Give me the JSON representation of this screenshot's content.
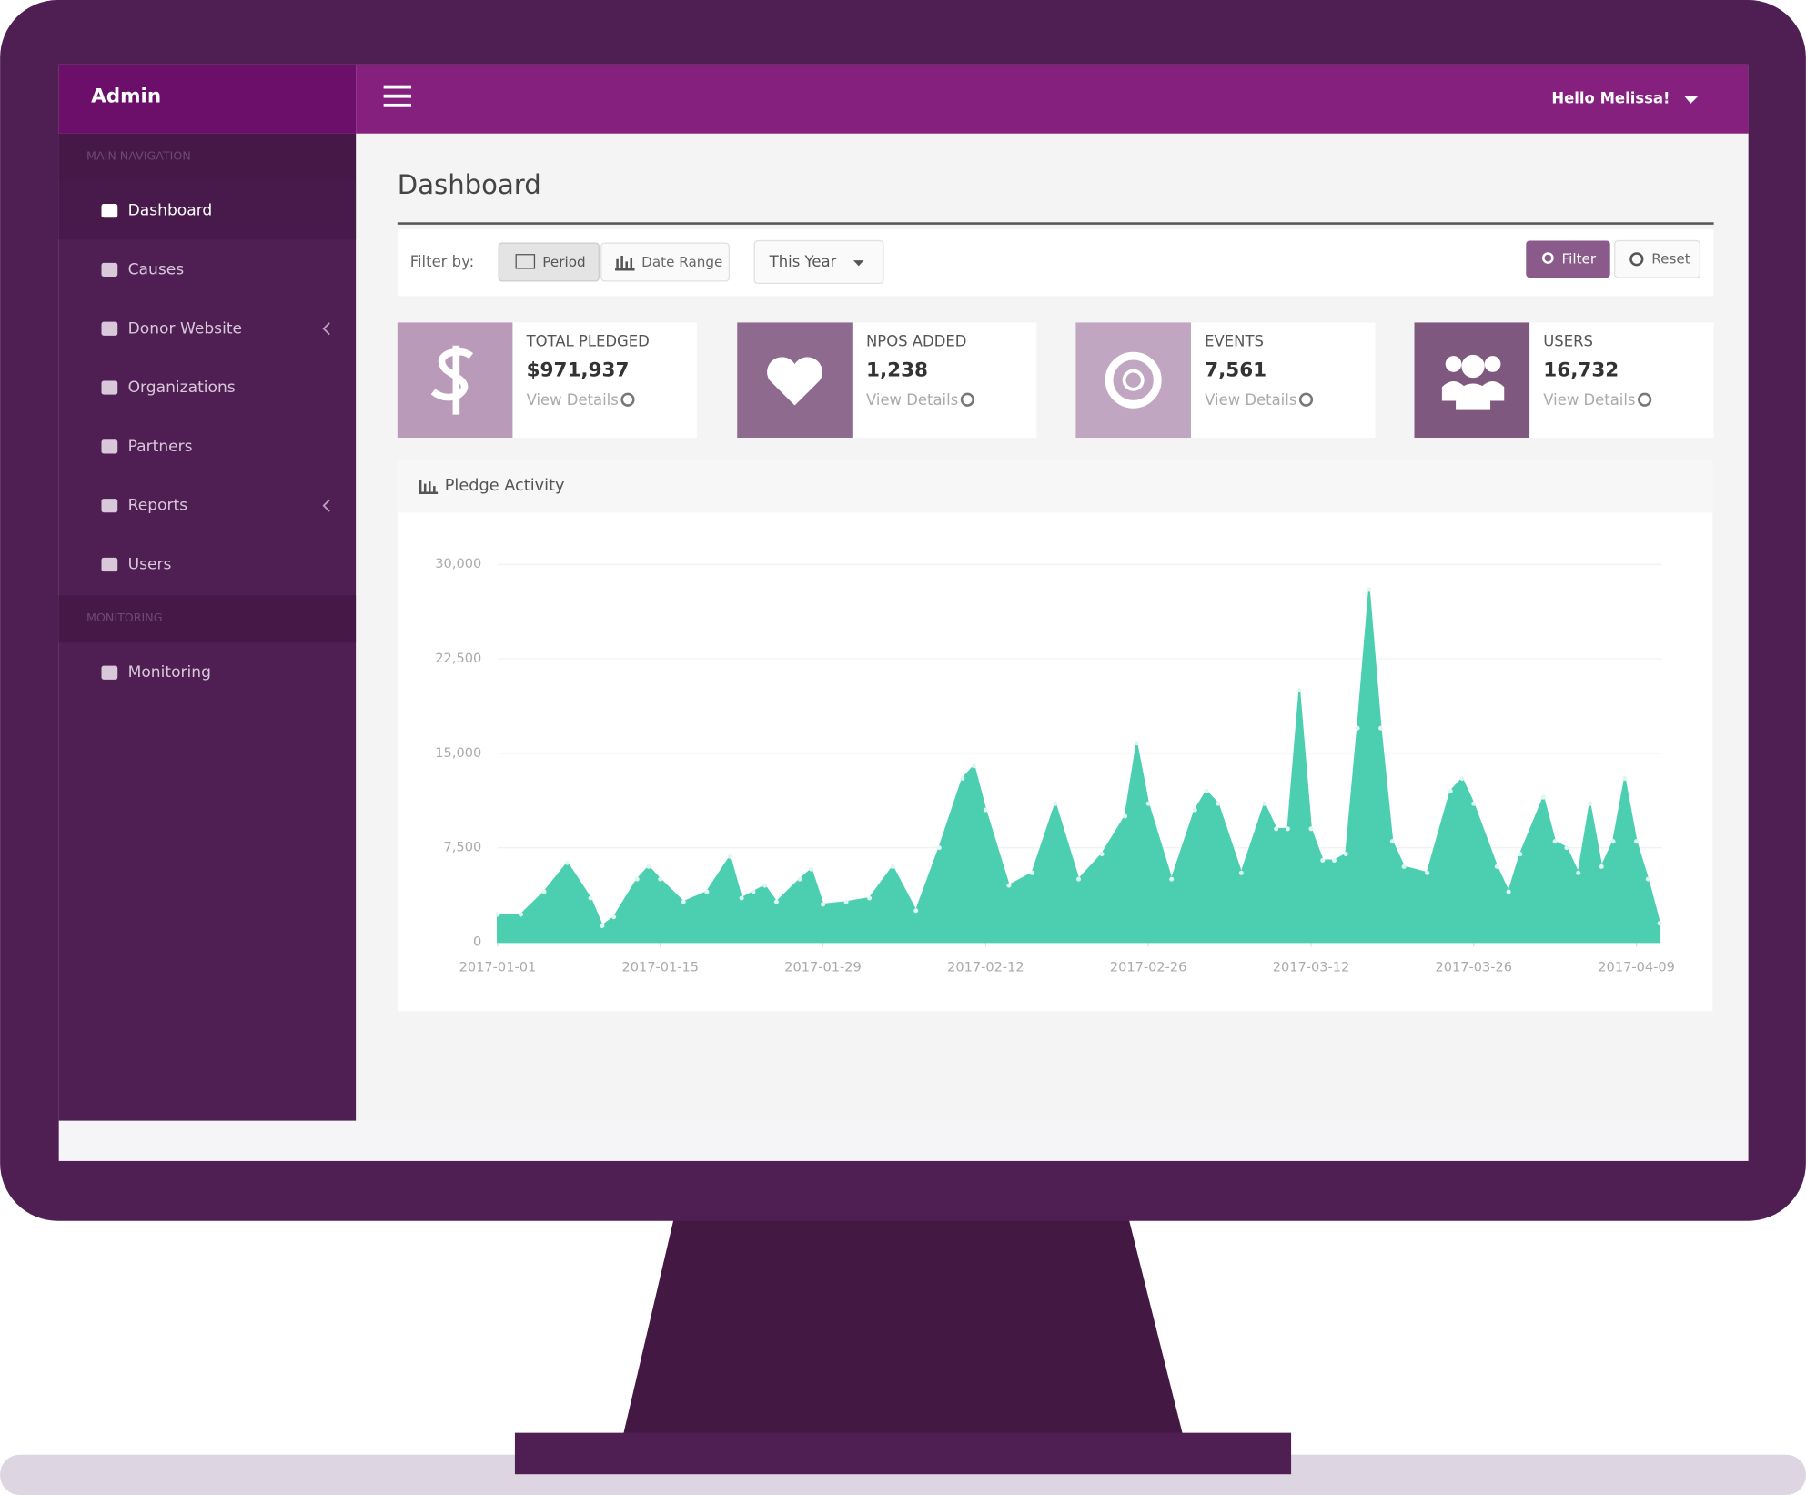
{
  "header": {
    "brand": "Admin",
    "greeting": "Hello Melissa!"
  },
  "sidebar": {
    "sections": [
      {
        "title": "MAIN NAVIGATION",
        "items": [
          "Dashboard",
          "Causes",
          "Donor Website",
          "Organizations",
          "Partners",
          "Reports",
          "Users"
        ]
      },
      {
        "title": "MONITORING",
        "items": [
          "Monitoring"
        ]
      }
    ]
  },
  "page_title": "Dashboard",
  "filter": {
    "label": "Filter by:",
    "tabs": [
      "Period",
      "Date Range"
    ],
    "select": "This Year",
    "buttons": [
      "Filter",
      "Reset"
    ]
  },
  "stats": [
    {
      "label": "TOTAL PLEDGED",
      "value": "$971,937",
      "link": "View Details"
    },
    {
      "label": "NPOS ADDED",
      "value": "1,238",
      "link": "View Details"
    },
    {
      "label": "EVENTS",
      "value": "7,561",
      "link": "View Details"
    },
    {
      "label": "USERS",
      "value": "16,732",
      "link": "View Details"
    }
  ],
  "chart_data": {
    "type": "area",
    "title": "Pledge Activity",
    "color": "#4ccfb0",
    "x": [
      "2017-01-01",
      "2017-01-03",
      "2017-01-05",
      "2017-01-07",
      "2017-01-09",
      "2017-01-10",
      "2017-01-11",
      "2017-01-13",
      "2017-01-14",
      "2017-01-15",
      "2017-01-17",
      "2017-01-19",
      "2017-01-21",
      "2017-01-22",
      "2017-01-23",
      "2017-01-24",
      "2017-01-25",
      "2017-01-27",
      "2017-01-28",
      "2017-01-29",
      "2017-01-31",
      "2017-02-02",
      "2017-02-04",
      "2017-02-06",
      "2017-02-08",
      "2017-02-10",
      "2017-02-11",
      "2017-02-12",
      "2017-02-14",
      "2017-02-16",
      "2017-02-18",
      "2017-02-20",
      "2017-02-22",
      "2017-02-24",
      "2017-02-25",
      "2017-02-26",
      "2017-02-28",
      "2017-03-02",
      "2017-03-03",
      "2017-03-04",
      "2017-03-06",
      "2017-03-08",
      "2017-03-09",
      "2017-03-10",
      "2017-03-11",
      "2017-03-12",
      "2017-03-13",
      "2017-03-14",
      "2017-03-15",
      "2017-03-16",
      "2017-03-17",
      "2017-03-18",
      "2017-03-19",
      "2017-03-20",
      "2017-03-22",
      "2017-03-24",
      "2017-03-25",
      "2017-03-26",
      "2017-03-28",
      "2017-03-29",
      "2017-03-30",
      "2017-04-01",
      "2017-04-02",
      "2017-04-03",
      "2017-04-04",
      "2017-04-05",
      "2017-04-06",
      "2017-04-07",
      "2017-04-08",
      "2017-04-09",
      "2017-04-10",
      "2017-04-11"
    ],
    "values": [
      2200,
      2200,
      4000,
      6300,
      3500,
      1300,
      2000,
      5000,
      6000,
      5000,
      3200,
      4000,
      6800,
      3500,
      4000,
      4500,
      3200,
      5000,
      5800,
      3000,
      3200,
      3500,
      6000,
      2500,
      7500,
      13000,
      14000,
      10500,
      4500,
      5500,
      11000,
      5000,
      7000,
      10000,
      15800,
      11000,
      5000,
      10500,
      12000,
      11000,
      5500,
      11000,
      9000,
      9000,
      20000,
      9000,
      6500,
      6500,
      7000,
      17000,
      28000,
      17000,
      8000,
      6000,
      5500,
      12000,
      13000,
      11000,
      6000,
      4000,
      7000,
      11500,
      8000,
      7500,
      5500,
      11000,
      6000,
      8000,
      13000,
      8000,
      5000,
      1500
    ],
    "xlim": [
      "2017-01-01",
      "2017-04-11"
    ],
    "xticks": [
      "2017-01-01",
      "2017-01-15",
      "2017-01-29",
      "2017-02-12",
      "2017-02-26",
      "2017-03-12",
      "2017-03-26",
      "2017-04-09"
    ],
    "ylim": [
      0,
      30000
    ],
    "yticks": [
      0,
      {
        "value": 7500,
        "label": "7,500"
      },
      {
        "value": 15000,
        "label": "15,000"
      },
      {
        "value": 22500,
        "label": "22,500"
      },
      {
        "value": 30000,
        "label": "30,000"
      }
    ],
    "grid": true
  }
}
